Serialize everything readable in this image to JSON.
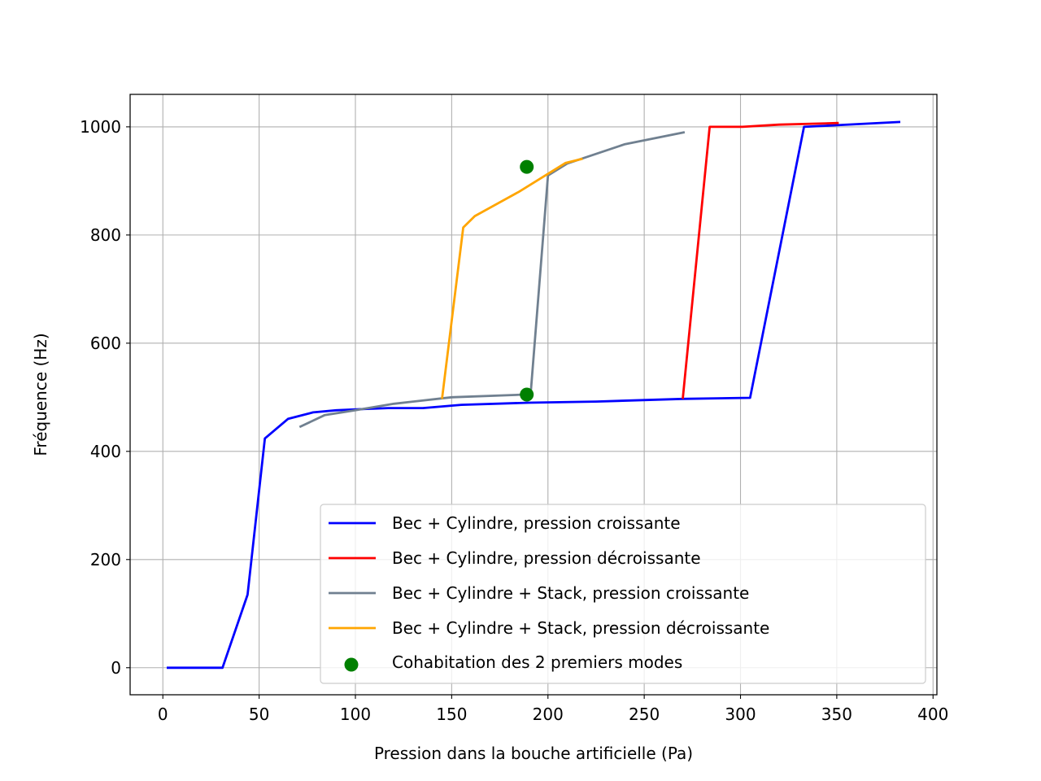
{
  "chart_data": {
    "type": "line",
    "title": "",
    "xlabel": "Pression dans la bouche artificielle (Pa)",
    "ylabel": "Fréquence (Hz)",
    "xlim": [
      -17,
      402
    ],
    "ylim": [
      -50,
      1060
    ],
    "xticks": [
      0,
      50,
      100,
      150,
      200,
      250,
      300,
      350,
      400
    ],
    "yticks": [
      0,
      200,
      400,
      600,
      800,
      1000
    ],
    "grid": true,
    "legend_position": "lower-right",
    "series": [
      {
        "name": "Bec + Cylindre, pression croissante",
        "color": "#0000ff",
        "x": [
          2,
          31,
          44,
          53,
          65,
          78,
          90,
          102,
          117,
          135,
          155,
          190,
          225,
          270,
          305,
          333,
          350,
          383
        ],
        "y": [
          0,
          0,
          135,
          424,
          460,
          472,
          476,
          478,
          480,
          480,
          486,
          490,
          492,
          497,
          499,
          1000,
          1003,
          1009
        ]
      },
      {
        "name": "Bec + Cylindre, pression décroissante",
        "color": "#ff0000",
        "x": [
          270,
          284,
          301,
          320,
          351
        ],
        "y": [
          497,
          1000,
          1000,
          1004,
          1007
        ]
      },
      {
        "name": "Bec + Cylindre + Stack, pression croissante",
        "color": "#708090",
        "x": [
          71,
          84,
          100,
          120,
          150,
          188,
          191,
          200,
          210,
          240,
          271
        ],
        "y": [
          445,
          467,
          476,
          488,
          500,
          505,
          505,
          910,
          932,
          968,
          990
        ],
        "breaks": []
      },
      {
        "name": "Bec + Cylindre + Stack, pression décroissante",
        "color": "#ffa500",
        "x": [
          145,
          156,
          162,
          185,
          209,
          218
        ],
        "y": [
          497,
          814,
          835,
          880,
          933,
          941
        ]
      }
    ],
    "scatter": {
      "name": "Cohabitation des 2 premiers modes",
      "color": "#008000",
      "x": [
        189,
        189
      ],
      "y": [
        926,
        505
      ]
    }
  }
}
